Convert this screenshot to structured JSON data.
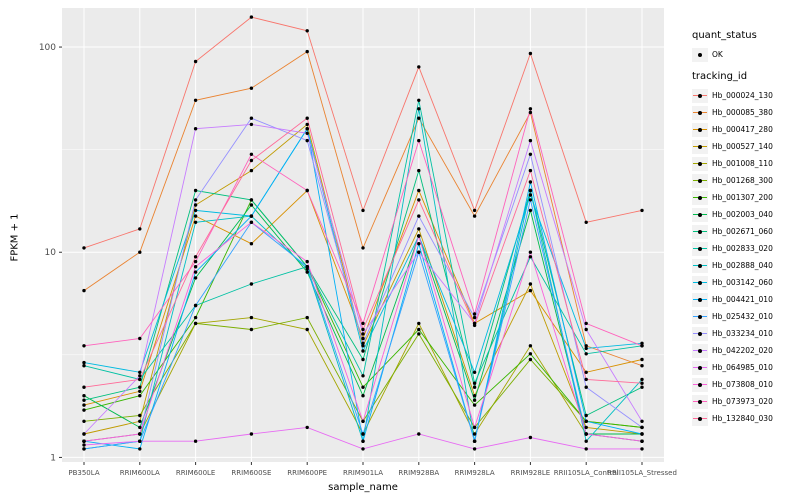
{
  "chart_data": {
    "type": "line",
    "title": "",
    "xlabel": "sample_name",
    "ylabel": "FPKM + 1",
    "y_scale": "log10",
    "ylim": [
      0.95,
      155
    ],
    "y_ticks": [
      1,
      10,
      100
    ],
    "y_tick_labels": [
      "1",
      "10",
      "100"
    ],
    "y_minor_ticks": [
      3.1623,
      31.623
    ],
    "grid": true,
    "panel_bg": "#EBEBEB",
    "gridline_color": "#FFFFFF",
    "point_color": "#000000",
    "legend": {
      "position": "right",
      "quant_status_title": "quant_status",
      "quant_status_items": [
        {
          "label": "OK",
          "marker": "black-point"
        }
      ],
      "tracking_title": "tracking_id"
    },
    "categories": [
      "PB350LA",
      "RRIM600LA",
      "RRIM600LE",
      "RRIM600SE",
      "RRIM600PE",
      "RRIM901LA",
      "RRIM928BA",
      "RRIM928LA",
      "RRIM928LE",
      "RRII105LA_Control",
      "RRII105LA_Stressed"
    ],
    "series": [
      {
        "name": "Hb_000024_130",
        "color": "#F8766D",
        "values": [
          10.5,
          13,
          85,
          140,
          120,
          16,
          80,
          16,
          93,
          14,
          16
        ]
      },
      {
        "name": "Hb_000085_380",
        "color": "#EA8331",
        "values": [
          6.5,
          10,
          55,
          63,
          95,
          10.5,
          45,
          15,
          48,
          3.5,
          2.8
        ]
      },
      {
        "name": "Hb_000417_280",
        "color": "#D89000",
        "values": [
          1.8,
          2.1,
          15,
          11,
          20,
          3.8,
          20,
          4.5,
          6.5,
          2.6,
          3.0
        ]
      },
      {
        "name": "Hb_000527_140",
        "color": "#C09B00",
        "values": [
          1.3,
          1.5,
          17,
          25,
          42,
          3.5,
          13,
          2.0,
          7.0,
          1.4,
          1.3
        ]
      },
      {
        "name": "Hb_001008_110",
        "color": "#A3A500",
        "values": [
          1.2,
          1.3,
          4.5,
          4.8,
          4.2,
          1.3,
          4.5,
          1.3,
          3.5,
          1.3,
          1.2
        ]
      },
      {
        "name": "Hb_001268_300",
        "color": "#7CAE00",
        "values": [
          1.5,
          1.6,
          4.5,
          4.2,
          4.8,
          1.5,
          4.0,
          1.4,
          3.0,
          1.5,
          1.4
        ]
      },
      {
        "name": "Hb_001307_200",
        "color": "#39B600",
        "values": [
          1.7,
          2.0,
          4.8,
          18,
          8.5,
          2.2,
          4.2,
          1.8,
          3.2,
          1.5,
          1.4
        ]
      },
      {
        "name": "Hb_002003_040",
        "color": "#00BB4E",
        "values": [
          2.0,
          1.4,
          7.5,
          17,
          8.0,
          2.0,
          12,
          1.9,
          16,
          1.3,
          1.3
        ]
      },
      {
        "name": "Hb_002671_060",
        "color": "#00BF7D",
        "values": [
          1.9,
          2.2,
          20,
          18,
          8.5,
          3.0,
          25,
          2.2,
          20,
          1.6,
          2.2
        ]
      },
      {
        "name": "Hb_002833_020",
        "color": "#00C1A3",
        "values": [
          2.8,
          2.4,
          5.5,
          7.0,
          8.5,
          2.5,
          55,
          2.3,
          9.5,
          3.2,
          3.5
        ]
      },
      {
        "name": "Hb_002888_040",
        "color": "#00BFC4",
        "values": [
          1.1,
          1.2,
          14,
          15,
          8.3,
          1.2,
          50,
          1.2,
          20,
          1.2,
          2.4
        ]
      },
      {
        "name": "Hb_003142_060",
        "color": "#00BAE0",
        "values": [
          2.9,
          2.6,
          16,
          15,
          40,
          3.3,
          12,
          2.6,
          19,
          3.4,
          3.6
        ]
      },
      {
        "name": "Hb_004421_010",
        "color": "#00B0F6",
        "values": [
          1.2,
          1.1,
          8.0,
          15,
          40,
          1.2,
          11,
          1.2,
          22,
          1.5,
          1.3
        ]
      },
      {
        "name": "Hb_025432_010",
        "color": "#35A2FF",
        "values": [
          1.1,
          1.2,
          5.5,
          14,
          8.5,
          1.3,
          10,
          1.2,
          18,
          1.3,
          1.2
        ]
      },
      {
        "name": "Hb_033234_010",
        "color": "#9590FF",
        "values": [
          1.2,
          1.3,
          18,
          45,
          35,
          3.6,
          15,
          4.8,
          30,
          2.2,
          1.4
        ]
      },
      {
        "name": "Hb_042202_020",
        "color": "#C77CFF",
        "values": [
          1.3,
          2.5,
          40,
          42,
          38,
          4.0,
          10,
          4.5,
          35,
          4.2,
          1.5
        ]
      },
      {
        "name": "Hb_064985_010",
        "color": "#E76BF3",
        "values": [
          1.15,
          1.2,
          1.2,
          1.3,
          1.4,
          1.1,
          1.3,
          1.1,
          1.25,
          1.1,
          1.1
        ]
      },
      {
        "name": "Hb_073808_010",
        "color": "#FA62DB",
        "values": [
          1.2,
          1.3,
          8.5,
          14,
          9.0,
          1.5,
          12,
          1.4,
          10,
          1.3,
          1.2
        ]
      },
      {
        "name": "Hb_073973_020",
        "color": "#FF62BC",
        "values": [
          3.5,
          3.8,
          9.0,
          30,
          20,
          4.5,
          35,
          5.0,
          50,
          4.5,
          3.5
        ]
      },
      {
        "name": "Hb_132840_030",
        "color": "#FF6A98",
        "values": [
          2.2,
          2.4,
          9.5,
          28,
          45,
          4.2,
          18,
          4.4,
          25,
          2.4,
          2.3
        ]
      }
    ]
  }
}
